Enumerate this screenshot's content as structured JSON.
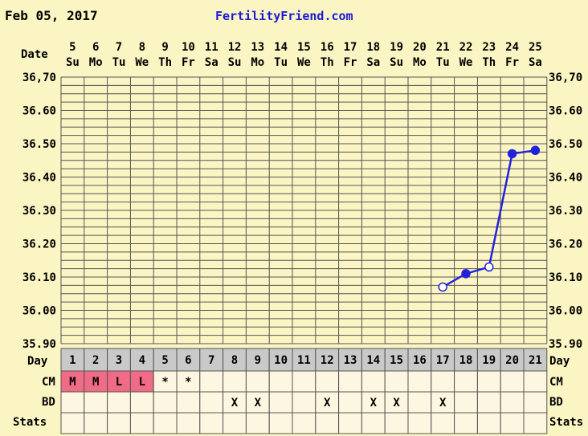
{
  "header": {
    "date": "Feb 05, 2017",
    "site": "FertilityFriend.com"
  },
  "labels": {
    "date": "Date",
    "day": "Day",
    "cm": "CM",
    "bd": "BD",
    "stats": "Stats",
    "stats_right": "Stats"
  },
  "colors": {
    "background": "#fbf5c3",
    "grid": "#555555",
    "line": "#2222dd",
    "day_row": "#c9c9c9",
    "cm_fill": "#f06b86",
    "row_fill": "#fdf6e0"
  },
  "chart_data": {
    "type": "line",
    "ylim": [
      35.9,
      36.7
    ],
    "y_ticks": [
      "36,70",
      "36.60",
      "36.50",
      "36.40",
      "36.30",
      "36.20",
      "36.10",
      "36.00",
      "35.90"
    ],
    "y_ticks_right": [
      "36,70",
      "36.60",
      "36.50",
      "36.40",
      "36.30",
      "36.20",
      "36.10",
      "36.00",
      "35.90"
    ],
    "dates": [
      "5",
      "6",
      "7",
      "8",
      "9",
      "10",
      "11",
      "12",
      "13",
      "14",
      "15",
      "16",
      "17",
      "18",
      "19",
      "20",
      "21",
      "22",
      "23",
      "24",
      "25"
    ],
    "weekdays": [
      "Su",
      "Mo",
      "Tu",
      "We",
      "Th",
      "Fr",
      "Sa",
      "Su",
      "Mo",
      "Tu",
      "We",
      "Th",
      "Fr",
      "Sa",
      "Su",
      "Mo",
      "Tu",
      "We",
      "Th",
      "Fr",
      "Sa"
    ],
    "cycle_days": [
      "1",
      "2",
      "3",
      "4",
      "5",
      "6",
      "7",
      "8",
      "9",
      "10",
      "11",
      "12",
      "13",
      "14",
      "15",
      "16",
      "17",
      "18",
      "19",
      "20",
      "21"
    ],
    "series": [
      {
        "points": [
          {
            "day": 17,
            "value": 36.07,
            "open": true
          },
          {
            "day": 18,
            "value": 36.11,
            "open": false
          },
          {
            "day": 19,
            "value": 36.13,
            "open": true
          },
          {
            "day": 20,
            "value": 36.47,
            "open": false
          },
          {
            "day": 21,
            "value": 36.48,
            "open": false
          }
        ]
      }
    ],
    "cm": [
      "M",
      "M",
      "L",
      "L",
      "*",
      "*",
      "",
      "",
      "",
      "",
      "",
      "",
      "",
      "",
      "",
      "",
      "",
      "",
      "",
      "",
      ""
    ],
    "cm_highlight": [
      true,
      true,
      true,
      true,
      false,
      false,
      false,
      false,
      false,
      false,
      false,
      false,
      false,
      false,
      false,
      false,
      false,
      false,
      false,
      false,
      false
    ],
    "bd": [
      "",
      "",
      "",
      "",
      "",
      "",
      "",
      "X",
      "X",
      "",
      "",
      "X",
      "",
      "X",
      "X",
      "",
      "X",
      "",
      "",
      "",
      ""
    ],
    "stats": [
      "",
      "",
      "",
      "",
      "",
      "",
      "",
      "",
      "",
      "",
      "",
      "",
      "",
      "",
      "",
      "",
      "",
      "",
      "",
      "",
      ""
    ]
  }
}
